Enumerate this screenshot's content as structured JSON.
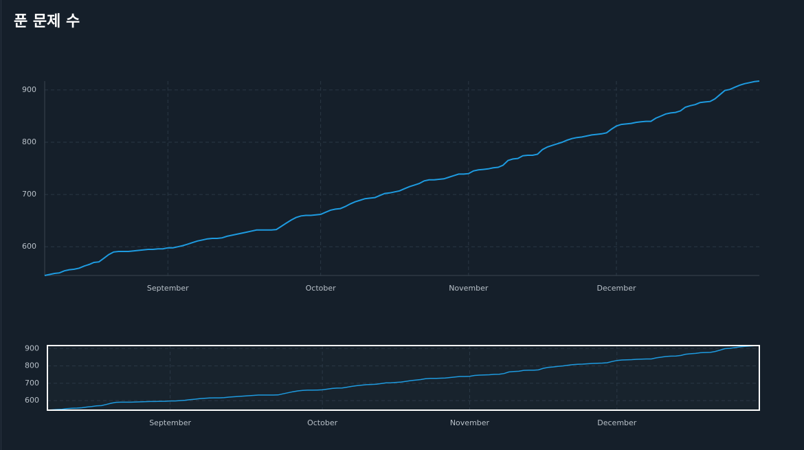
{
  "chart_data": {
    "type": "line",
    "title": "푼 문제 수",
    "categories": [
      null,
      null,
      null,
      null,
      null,
      null,
      null,
      null,
      null,
      null,
      null,
      null,
      null,
      null,
      null,
      null,
      null,
      null,
      null,
      null,
      null,
      null,
      null,
      null,
      null,
      "September",
      null,
      null,
      null,
      null,
      null,
      null,
      null,
      null,
      null,
      null,
      null,
      null,
      null,
      null,
      null,
      null,
      null,
      null,
      null,
      null,
      null,
      null,
      null,
      null,
      null,
      null,
      null,
      null,
      null,
      null,
      "October",
      null,
      null,
      null,
      null,
      null,
      null,
      null,
      null,
      null,
      null,
      null,
      null,
      null,
      null,
      null,
      null,
      null,
      null,
      null,
      null,
      null,
      null,
      null,
      null,
      null,
      null,
      null,
      null,
      null,
      "November",
      null,
      null,
      null,
      null,
      null,
      null,
      null,
      null,
      null,
      null,
      null,
      null,
      null,
      null,
      null,
      null,
      null,
      null,
      null,
      null,
      null,
      null,
      null,
      null,
      null,
      null,
      null,
      null,
      null,
      "December",
      null,
      null,
      null,
      null,
      null,
      null,
      null,
      null,
      null,
      null,
      null,
      null,
      null,
      null,
      null,
      null,
      null,
      null,
      null,
      null,
      null,
      null,
      null,
      null,
      null,
      null,
      null,
      null,
      null
    ],
    "values": [
      545,
      547,
      549,
      550,
      554,
      556,
      557,
      559,
      563,
      566,
      570,
      571,
      578,
      585,
      590,
      591,
      591,
      591,
      592,
      593,
      594,
      595,
      595,
      596,
      596,
      598,
      598,
      600,
      602,
      605,
      608,
      611,
      613,
      615,
      616,
      616,
      617,
      620,
      622,
      624,
      626,
      628,
      630,
      632,
      632,
      632,
      632,
      633,
      639,
      645,
      651,
      656,
      659,
      660,
      660,
      661,
      662,
      666,
      670,
      672,
      673,
      677,
      682,
      686,
      689,
      692,
      693,
      694,
      698,
      702,
      703,
      705,
      707,
      711,
      715,
      718,
      721,
      726,
      728,
      728,
      729,
      730,
      733,
      736,
      739,
      739,
      740,
      745,
      747,
      748,
      749,
      751,
      752,
      756,
      765,
      768,
      769,
      774,
      775,
      775,
      777,
      786,
      791,
      794,
      797,
      800,
      804,
      807,
      809,
      810,
      812,
      814,
      815,
      816,
      818,
      825,
      831,
      834,
      835,
      836,
      838,
      839,
      840,
      840,
      846,
      850,
      854,
      856,
      857,
      860,
      867,
      870,
      872,
      876,
      877,
      878,
      883,
      891,
      899,
      901,
      905,
      909,
      912,
      914,
      916,
      917
    ],
    "color": "#1e9be0",
    "ylim": [
      545,
      917
    ],
    "yticks": [
      600,
      700,
      800,
      900
    ],
    "grid": true,
    "navigator": true
  }
}
